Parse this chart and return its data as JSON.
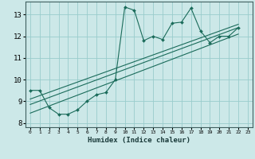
{
  "xlabel": "Humidex (Indice chaleur)",
  "xlim": [
    -0.5,
    23.5
  ],
  "ylim": [
    7.8,
    13.6
  ],
  "xticks": [
    0,
    1,
    2,
    3,
    4,
    5,
    6,
    7,
    8,
    9,
    10,
    11,
    12,
    13,
    14,
    15,
    16,
    17,
    18,
    19,
    20,
    21,
    22,
    23
  ],
  "yticks": [
    8,
    9,
    10,
    11,
    12,
    13
  ],
  "bg_color": "#cce8e8",
  "grid_color": "#99cccc",
  "line_color": "#1a6b5a",
  "data_x": [
    0,
    1,
    2,
    3,
    4,
    5,
    6,
    7,
    8,
    9,
    10,
    11,
    12,
    13,
    14,
    15,
    16,
    17,
    18,
    19,
    20,
    21,
    22
  ],
  "data_y": [
    9.5,
    9.5,
    8.7,
    8.4,
    8.4,
    8.6,
    9.0,
    9.3,
    9.4,
    10.0,
    13.35,
    13.2,
    11.8,
    12.0,
    11.85,
    12.6,
    12.65,
    13.3,
    12.25,
    11.7,
    12.0,
    12.0,
    12.4
  ],
  "line1_x": [
    0,
    22
  ],
  "line1_y": [
    8.85,
    12.4
  ],
  "line2_x": [
    0,
    22
  ],
  "line2_y": [
    8.45,
    12.1
  ],
  "line3_x": [
    0,
    22
  ],
  "line3_y": [
    9.1,
    12.55
  ]
}
